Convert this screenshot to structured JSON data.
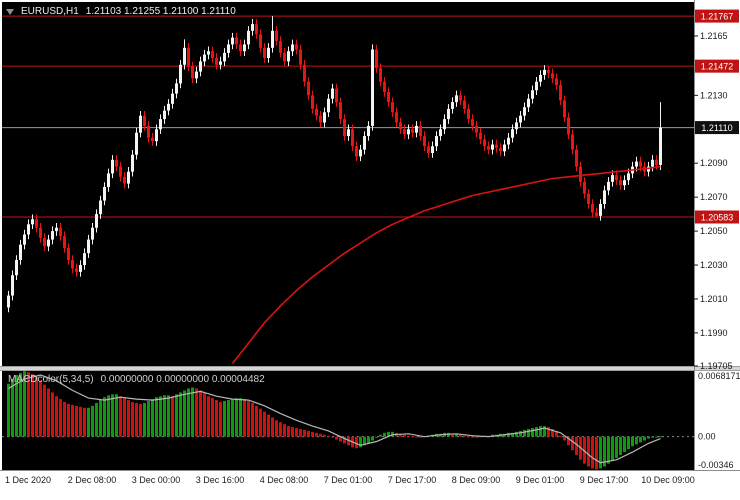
{
  "header": {
    "symbol": "EURUSD,H1",
    "ohlc": "1.21103 1.21255 1.21100 1.21110"
  },
  "indicator_label": {
    "name": "MACDcolor(5,34,5)",
    "values": "0.00000000 0.00000000 0.00004482"
  },
  "colors": {
    "background": "#ffffff",
    "pane": "#000000",
    "bull": "#f4f4f4",
    "bear": "#e81515",
    "price_line": "#c01414",
    "label_red_bg": "#c01414",
    "label_black_bg": "#101010",
    "label_text": "#ffffff",
    "axis_text": "#1a1a1a",
    "current_line": "#9a9a9a",
    "ma": "#dd1111",
    "macd_up": "#0c9b0c",
    "macd_down": "#d01010",
    "signal": "#b8b8b8",
    "separator": "#d4d4d4",
    "separator_edge": "#9e9e9e",
    "axis_frame": "#8c8c8c",
    "zero_line": "#8a8a8a"
  },
  "chart_data": {
    "type": "candlestick",
    "title": "EURUSD,H1",
    "timeframe": "H1",
    "legend_position": "top-left",
    "grid": false,
    "x_labels": [
      {
        "t": "1 Dec 2020",
        "bar": 5
      },
      {
        "t": "2 Dec 08:00",
        "bar": 21
      },
      {
        "t": "3 Dec 00:00",
        "bar": 37
      },
      {
        "t": "3 Dec 16:00",
        "bar": 53
      },
      {
        "t": "4 Dec 08:00",
        "bar": 69
      },
      {
        "t": "7 Dec 01:00",
        "bar": 85
      },
      {
        "t": "7 Dec 17:00",
        "bar": 101
      },
      {
        "t": "8 Dec 09:00",
        "bar": 117
      },
      {
        "t": "9 Dec 01:00",
        "bar": 133
      },
      {
        "t": "9 Dec 17:00",
        "bar": 149
      },
      {
        "t": "10 Dec 09:00",
        "bar": 165
      }
    ],
    "y_axis": {
      "price_max": 1.2185,
      "price_min": 1.19705,
      "ticks": [
        {
          "v": 1.2165,
          "t": "1.2165"
        },
        {
          "v": 1.213,
          "t": "1.2130"
        },
        {
          "v": 1.209,
          "t": "1.2090"
        },
        {
          "v": 1.207,
          "t": "1.2070"
        },
        {
          "v": 1.205,
          "t": "1.2050"
        },
        {
          "v": 1.203,
          "t": "1.2030"
        },
        {
          "v": 1.201,
          "t": "1.2010"
        },
        {
          "v": 1.199,
          "t": "1.1990"
        },
        {
          "v": 1.19705,
          "t": "1.19705"
        }
      ]
    },
    "price_lines": [
      {
        "price": 1.21767,
        "label": "1.21767"
      },
      {
        "price": 1.21472,
        "label": "1.21472"
      },
      {
        "price": 1.20583,
        "label": "1.20583"
      }
    ],
    "current_price": {
      "price": 1.2111,
      "label": "1.21110"
    },
    "candles": {
      "first_open": 1.2005,
      "default_wick": 0.00028,
      "closes": [
        1.2012,
        1.2024,
        1.2033,
        1.2042,
        1.2048,
        1.2054,
        1.2057,
        1.2052,
        1.2046,
        1.2041,
        1.2045,
        1.205,
        1.2052,
        1.2047,
        1.204,
        1.2033,
        1.2028,
        1.2026,
        1.203,
        1.2037,
        1.2045,
        1.2052,
        1.206,
        1.2068,
        1.2076,
        1.2084,
        1.2092,
        1.2088,
        1.2082,
        1.2078,
        1.2085,
        1.2095,
        1.2108,
        1.2118,
        1.2112,
        1.2105,
        1.2103,
        1.211,
        1.2116,
        1.2121,
        1.2125,
        1.2131,
        1.2137,
        1.2148,
        1.2158,
        1.2147,
        1.214,
        1.2144,
        1.215,
        1.2154,
        1.2156,
        1.2152,
        1.2148,
        1.215,
        1.2155,
        1.216,
        1.2164,
        1.216,
        1.2156,
        1.216,
        1.2168,
        1.2172,
        1.2166,
        1.2158,
        1.2152,
        1.2158,
        1.2168,
        1.2162,
        1.2155,
        1.215,
        1.2156,
        1.216,
        1.2157,
        1.2148,
        1.2138,
        1.213,
        1.2122,
        1.2118,
        1.2114,
        1.212,
        1.2128,
        1.2134,
        1.2126,
        1.2116,
        1.2106,
        1.211,
        1.21,
        1.2094,
        1.2098,
        1.2106,
        1.2112,
        1.2157,
        1.2146,
        1.2138,
        1.2132,
        1.2126,
        1.212,
        1.2114,
        1.211,
        1.2107,
        1.211,
        1.2108,
        1.2112,
        1.2106,
        1.21,
        1.2096,
        1.21,
        1.2106,
        1.211,
        1.2116,
        1.2122,
        1.2126,
        1.213,
        1.2127,
        1.2122,
        1.2116,
        1.2112,
        1.2108,
        1.2104,
        1.21,
        1.2098,
        1.2101,
        1.2099,
        1.2097,
        1.2101,
        1.2105,
        1.211,
        1.2114,
        1.2118,
        1.2123,
        1.2128,
        1.2133,
        1.2138,
        1.2142,
        1.2145,
        1.2143,
        1.214,
        1.2136,
        1.2127,
        1.2117,
        1.2107,
        1.2098,
        1.2088,
        1.2079,
        1.2072,
        1.2066,
        1.2061,
        1.2059,
        1.2066,
        1.2074,
        1.2079,
        1.2083,
        1.208,
        1.2077,
        1.208,
        1.2084,
        1.2088,
        1.2091,
        1.2088,
        1.2085,
        1.2088,
        1.2092,
        1.2089,
        1.2111
      ],
      "overrides": {
        "44": {
          "h": 1.2163
        },
        "61": {
          "h": 1.2175
        },
        "66": {
          "h": 1.21767
        },
        "91": {
          "h": 1.216
        },
        "135": {
          "h": 1.2147
        },
        "147": {
          "l": 1.20583
        },
        "163": {
          "h": 1.2126,
          "l": 1.2086
        }
      }
    },
    "ma": {
      "points": [
        [
          56,
          1.1972
        ],
        [
          60,
          1.1984
        ],
        [
          64,
          1.1996
        ],
        [
          68,
          1.2006
        ],
        [
          72,
          1.2015
        ],
        [
          76,
          1.2023
        ],
        [
          80,
          1.203
        ],
        [
          84,
          1.2037
        ],
        [
          88,
          1.2043
        ],
        [
          92,
          1.2049
        ],
        [
          96,
          1.2054
        ],
        [
          100,
          1.2058
        ],
        [
          104,
          1.2062
        ],
        [
          108,
          1.2065
        ],
        [
          112,
          1.2068
        ],
        [
          116,
          1.2071
        ],
        [
          120,
          1.2073
        ],
        [
          124,
          1.2075
        ],
        [
          128,
          1.2077
        ],
        [
          132,
          1.2079
        ],
        [
          136,
          1.2081
        ],
        [
          140,
          1.2082
        ],
        [
          144,
          1.2083
        ],
        [
          148,
          1.2084
        ],
        [
          152,
          1.2085
        ],
        [
          156,
          1.2086
        ],
        [
          160,
          1.2087
        ],
        [
          163,
          1.2088
        ]
      ]
    },
    "macd": {
      "max": 0.0068171,
      "min": -0.00346,
      "ticks": {
        "top": "0.0068171",
        "zero": "0.00",
        "bottom": "-0.00346"
      },
      "hist": [
        0.0055,
        0.006,
        0.0064,
        0.0066,
        0.0068,
        0.0067,
        0.0065,
        0.0062,
        0.0058,
        0.0054,
        0.005,
        0.0046,
        0.0042,
        0.0039,
        0.0036,
        0.0034,
        0.0033,
        0.0032,
        0.0031,
        0.003,
        0.003,
        0.0032,
        0.0035,
        0.0038,
        0.0041,
        0.0043,
        0.0044,
        0.0044,
        0.0042,
        0.004,
        0.0038,
        0.0036,
        0.0035,
        0.0034,
        0.0035,
        0.0037,
        0.0039,
        0.0041,
        0.0042,
        0.0043,
        0.0043,
        0.0042,
        0.0044,
        0.0046,
        0.0048,
        0.005,
        0.0051,
        0.005,
        0.0048,
        0.0045,
        0.0042,
        0.004,
        0.0038,
        0.0036,
        0.0037,
        0.0038,
        0.0039,
        0.004,
        0.004,
        0.0039,
        0.0037,
        0.0035,
        0.0032,
        0.0029,
        0.0026,
        0.0023,
        0.002,
        0.0017,
        0.0015,
        0.0013,
        0.0011,
        0.001,
        0.0009,
        0.0008,
        0.0007,
        0.0006,
        0.0005,
        0.0004,
        0.0003,
        0.0002,
        0.0001,
        -0.0001,
        -0.0003,
        -0.0005,
        -0.0007,
        -0.0009,
        -0.0011,
        -0.0012,
        -0.0011,
        -0.0009,
        -0.0007,
        -0.0004,
        -0.0001,
        0.0002,
        0.0004,
        0.0005,
        0.0005,
        0.0004,
        0.0003,
        0.0002,
        0.0001,
        5e-05,
        -5e-05,
        -0.0001,
        5e-05,
        0.0001,
        0.0002,
        0.0003,
        0.0003,
        0.0004,
        0.0004,
        0.0003,
        0.0003,
        0.0002,
        0.0001,
        5e-05,
        -5e-05,
        -0.0001,
        5e-05,
        0.0001,
        0.0001,
        0.0002,
        0.0002,
        0.0003,
        0.0003,
        0.0004,
        0.0004,
        0.0005,
        0.0006,
        0.0007,
        0.0008,
        0.0009,
        0.001,
        0.0011,
        0.0011,
        0.001,
        0.0008,
        0.0005,
        0.0001,
        -0.0004,
        -0.0009,
        -0.0014,
        -0.0019,
        -0.0024,
        -0.0028,
        -0.0031,
        -0.0033,
        -0.0034,
        -0.0033,
        -0.0031,
        -0.0028,
        -0.0025,
        -0.0022,
        -0.0019,
        -0.0016,
        -0.0013,
        -0.001,
        -0.0008,
        -0.0006,
        -0.0004,
        -0.0002,
        -0.0001,
        -3e-05,
        4.48e-05
      ],
      "signal": [
        [
          0,
          0.005
        ],
        [
          4,
          0.006
        ],
        [
          8,
          0.0064
        ],
        [
          12,
          0.0058
        ],
        [
          16,
          0.0048
        ],
        [
          20,
          0.004
        ],
        [
          24,
          0.0038
        ],
        [
          28,
          0.0041
        ],
        [
          32,
          0.0039
        ],
        [
          36,
          0.0038
        ],
        [
          40,
          0.004
        ],
        [
          44,
          0.0044
        ],
        [
          48,
          0.0047
        ],
        [
          52,
          0.0042
        ],
        [
          56,
          0.0039
        ],
        [
          60,
          0.0038
        ],
        [
          64,
          0.0032
        ],
        [
          68,
          0.0024
        ],
        [
          72,
          0.0017
        ],
        [
          76,
          0.0011
        ],
        [
          80,
          0.0006
        ],
        [
          84,
          -0.0002
        ],
        [
          88,
          -0.0009
        ],
        [
          92,
          -0.0005
        ],
        [
          96,
          0.0002
        ],
        [
          100,
          0.0003
        ],
        [
          104,
          0.0
        ],
        [
          108,
          0.0002
        ],
        [
          112,
          0.0003
        ],
        [
          116,
          0.0001
        ],
        [
          120,
          0.0
        ],
        [
          124,
          0.0002
        ],
        [
          128,
          0.0004
        ],
        [
          132,
          0.0007
        ],
        [
          134,
          0.0009
        ],
        [
          138,
          0.0004
        ],
        [
          142,
          -0.0008
        ],
        [
          146,
          -0.0022
        ],
        [
          148,
          -0.0027
        ],
        [
          152,
          -0.0024
        ],
        [
          156,
          -0.0016
        ],
        [
          160,
          -0.0007
        ],
        [
          163,
          -0.0002
        ]
      ]
    }
  }
}
